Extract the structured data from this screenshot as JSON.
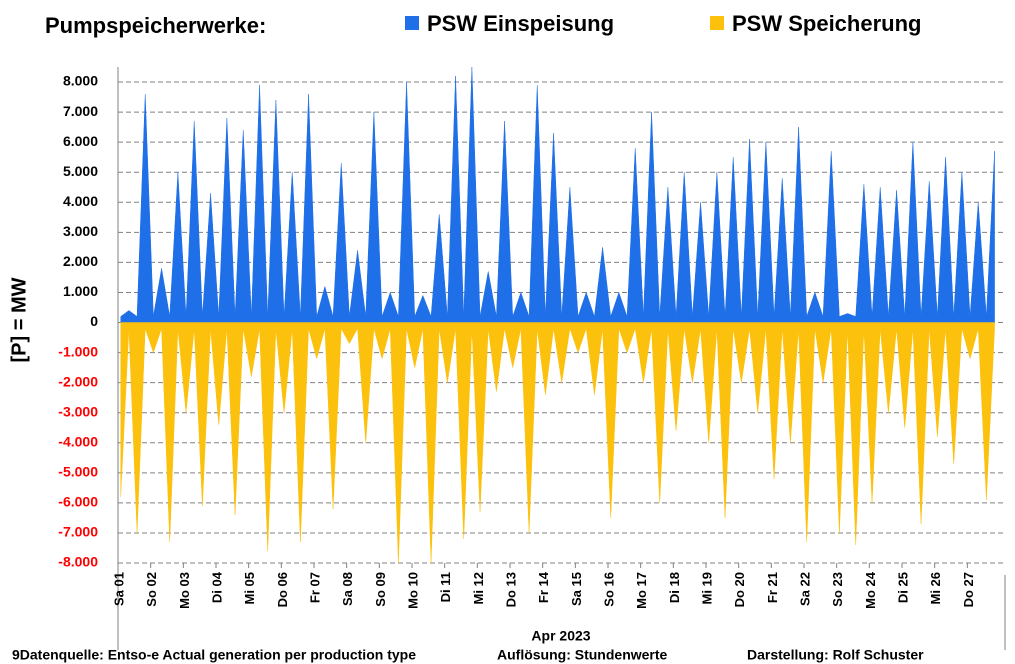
{
  "chart_data": {
    "type": "area",
    "title": "Pumpspeicherwerke:",
    "ylabel": "[P]  = MW",
    "xlabel": "Apr 2023",
    "footer": [
      "9Datenquelle: Entso-e  Actual generation per production type",
      "Auflösung: Stundenwerte",
      "Darstellung:  Rolf Schuster"
    ],
    "xlim": [
      0,
      648
    ],
    "ylim": [
      -8000,
      8500
    ],
    "grid": true,
    "negative_tick_color": "#ff0000",
    "xticks": [
      {
        "value": 0,
        "label": "Sa 01"
      },
      {
        "value": 24,
        "label": "So 02"
      },
      {
        "value": 48,
        "label": "Mo 03"
      },
      {
        "value": 72,
        "label": "Di 04"
      },
      {
        "value": 96,
        "label": "Mi 05"
      },
      {
        "value": 120,
        "label": "Do 06"
      },
      {
        "value": 144,
        "label": "Fr 07"
      },
      {
        "value": 168,
        "label": "Sa 08"
      },
      {
        "value": 192,
        "label": "So 09"
      },
      {
        "value": 216,
        "label": "Mo 10"
      },
      {
        "value": 240,
        "label": "Di 11"
      },
      {
        "value": 264,
        "label": "Mi 12"
      },
      {
        "value": 288,
        "label": "Do 13"
      },
      {
        "value": 312,
        "label": "Fr 14"
      },
      {
        "value": 336,
        "label": "Sa 15"
      },
      {
        "value": 360,
        "label": "So 16"
      },
      {
        "value": 384,
        "label": "Mo 17"
      },
      {
        "value": 408,
        "label": "Di 18"
      },
      {
        "value": 432,
        "label": "Mi 19"
      },
      {
        "value": 456,
        "label": "Do 20"
      },
      {
        "value": 480,
        "label": "Fr 21"
      },
      {
        "value": 504,
        "label": "Sa 22"
      },
      {
        "value": 528,
        "label": "So 23"
      },
      {
        "value": 552,
        "label": "Mo 24"
      },
      {
        "value": 576,
        "label": "Di 25"
      },
      {
        "value": 600,
        "label": "Mi 26"
      },
      {
        "value": 624,
        "label": "Do 27"
      }
    ],
    "yticks": [
      {
        "value": 8000,
        "label": "8.000"
      },
      {
        "value": 7000,
        "label": "7.000"
      },
      {
        "value": 6000,
        "label": "6.000"
      },
      {
        "value": 5000,
        "label": "5.000"
      },
      {
        "value": 4000,
        "label": "4.000"
      },
      {
        "value": 3000,
        "label": "3.000"
      },
      {
        "value": 2000,
        "label": "2.000"
      },
      {
        "value": 1000,
        "label": "1.000"
      },
      0,
      {
        "value": -1000,
        "label": "-1.000"
      },
      {
        "value": -2000,
        "label": "-2.000"
      },
      {
        "value": -3000,
        "label": "-3.000"
      },
      {
        "value": -4000,
        "label": "-4.000"
      },
      {
        "value": -5000,
        "label": "-5.000"
      },
      {
        "value": -6000,
        "label": "-6.000"
      },
      {
        "value": -7000,
        "label": "-7.000"
      },
      {
        "value": -8000,
        "label": "-8.000"
      }
    ],
    "x": [
      2,
      8,
      14,
      20,
      26,
      32,
      38,
      44,
      50,
      56,
      62,
      68,
      74,
      80,
      86,
      92,
      98,
      104,
      110,
      116,
      122,
      128,
      134,
      140,
      146,
      152,
      158,
      164,
      170,
      176,
      182,
      188,
      194,
      200,
      206,
      212,
      218,
      224,
      230,
      236,
      242,
      248,
      254,
      260,
      266,
      272,
      278,
      284,
      290,
      296,
      302,
      308,
      314,
      320,
      326,
      332,
      338,
      344,
      350,
      356,
      362,
      368,
      374,
      380,
      386,
      392,
      398,
      404,
      410,
      416,
      422,
      428,
      434,
      440,
      446,
      452,
      458,
      464,
      470,
      476,
      482,
      488,
      494,
      500,
      506,
      512,
      518,
      524,
      530,
      536,
      542,
      548,
      554,
      560,
      566,
      572,
      578,
      584,
      590,
      596,
      602,
      608,
      614,
      620,
      626,
      632,
      638,
      644
    ],
    "series": [
      {
        "name": "PSW Einspeisung",
        "color": "#1f6fe8",
        "values": [
          200,
          400,
          200,
          7600,
          200,
          1800,
          200,
          5000,
          200,
          6700,
          200,
          4300,
          200,
          6800,
          200,
          6400,
          200,
          7900,
          200,
          7400,
          200,
          5000,
          200,
          7600,
          200,
          1200,
          200,
          5300,
          200,
          2400,
          200,
          7000,
          200,
          1000,
          200,
          8000,
          200,
          900,
          200,
          3600,
          200,
          8200,
          200,
          8500,
          200,
          1700,
          200,
          6700,
          200,
          1000,
          200,
          7900,
          200,
          6300,
          200,
          4500,
          200,
          1000,
          200,
          2500,
          200,
          1000,
          200,
          5800,
          200,
          7000,
          200,
          4500,
          200,
          5000,
          200,
          4000,
          200,
          5000,
          200,
          5500,
          200,
          6100,
          200,
          6000,
          200,
          4800,
          200,
          6500,
          200,
          1000,
          200,
          5700,
          200,
          300,
          200,
          4600,
          200,
          4500,
          200,
          4400,
          200,
          6000,
          200,
          4700,
          200,
          5500,
          200,
          5000,
          200,
          4000,
          200,
          5700
        ]
      },
      {
        "name": "PSW Speicherung",
        "color": "#fcc10c",
        "values": [
          -5800,
          -200,
          -7000,
          -200,
          -1000,
          -200,
          -7300,
          -200,
          -3000,
          -200,
          -6100,
          -200,
          -3400,
          -200,
          -6400,
          -200,
          -1800,
          -200,
          -7600,
          -200,
          -3000,
          -200,
          -7300,
          -200,
          -1200,
          -200,
          -6200,
          -200,
          -700,
          -200,
          -4000,
          -200,
          -1200,
          -200,
          -8000,
          -200,
          -1500,
          -200,
          -8000,
          -200,
          -2000,
          -200,
          -7200,
          -200,
          -6300,
          -200,
          -2300,
          -200,
          -1500,
          -200,
          -7000,
          -200,
          -2400,
          -200,
          -2000,
          -200,
          -1000,
          -200,
          -2400,
          -200,
          -6500,
          -200,
          -1000,
          -200,
          -2000,
          -200,
          -6000,
          -200,
          -3600,
          -200,
          -2000,
          -200,
          -4000,
          -200,
          -6500,
          -200,
          -2000,
          -200,
          -3000,
          -200,
          -5200,
          -200,
          -4000,
          -200,
          -7300,
          -200,
          -2000,
          -200,
          -7000,
          -200,
          -7400,
          -200,
          -6000,
          -200,
          -3000,
          -200,
          -3500,
          -200,
          -6700,
          -200,
          -3800,
          -200,
          -4700,
          -200,
          -1200,
          -200,
          -5900,
          -200
        ]
      }
    ]
  }
}
